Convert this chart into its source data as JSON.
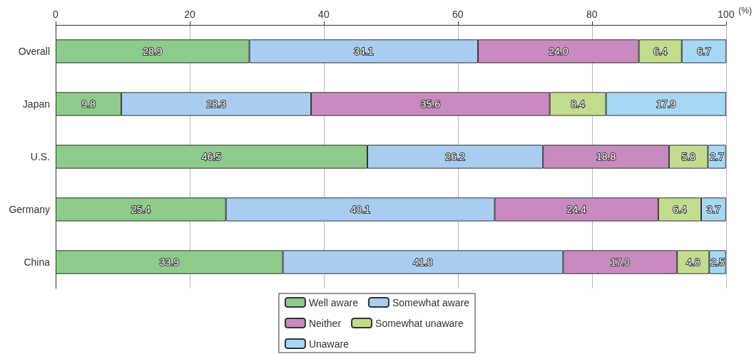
{
  "chart_data": {
    "type": "bar",
    "orientation": "horizontal",
    "stacked": true,
    "xlabel": "(%)",
    "categories": [
      "Overall",
      "Japan",
      "U.S.",
      "Germany",
      "China"
    ],
    "xlim": [
      0,
      100
    ],
    "xticks": [
      0,
      20,
      40,
      60,
      80,
      100
    ],
    "grid": "x",
    "legend": "bottom",
    "series": [
      {
        "name": "Well aware",
        "color": "#8dcb8a",
        "values": [
          28.9,
          9.8,
          46.5,
          25.4,
          33.9
        ],
        "value_labels": [
          "28.9",
          "9.8",
          "46.5",
          "25.4",
          "33.9"
        ]
      },
      {
        "name": "Somewhat aware",
        "color": "#a9cdf0",
        "values": [
          34.1,
          28.3,
          26.2,
          40.1,
          41.8
        ],
        "value_labels": [
          "34.1",
          "28.3",
          "26.2",
          "40.1",
          "41.8"
        ]
      },
      {
        "name": "Neither",
        "color": "#c98bbf",
        "values": [
          24.0,
          35.6,
          18.8,
          24.4,
          17.0
        ],
        "value_labels": [
          "24.0",
          "35.6",
          "18.8",
          "24.4",
          "17.0"
        ]
      },
      {
        "name": "Somewhat unaware",
        "color": "#c2dc8e",
        "values": [
          6.4,
          8.4,
          5.8,
          6.4,
          4.8
        ],
        "value_labels": [
          "6.4",
          "8.4",
          "5.8",
          "6.4",
          "4.8"
        ]
      },
      {
        "name": "Unaware",
        "color": "#a6d8f5",
        "values": [
          6.7,
          17.9,
          2.7,
          3.7,
          2.5
        ],
        "value_labels": [
          "6.7",
          "17.9",
          "2.7",
          "3.7",
          "2.5"
        ]
      }
    ]
  }
}
